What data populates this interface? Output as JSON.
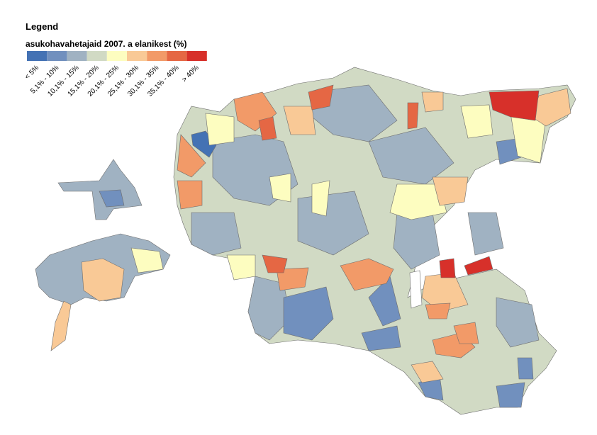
{
  "legend": {
    "title": "Legend",
    "subtitle": "asukohavahetajaid 2007. a elanikest (%)",
    "classes": [
      {
        "label": "< 5%",
        "color": "#4472b4"
      },
      {
        "label": "5,1% - 10%",
        "color": "#7190be"
      },
      {
        "label": "10,1% - 15%",
        "color": "#a0b2c2"
      },
      {
        "label": "15,1% - 20%",
        "color": "#d1dac4"
      },
      {
        "label": "20,1% - 25%",
        "color": "#fdfdc0"
      },
      {
        "label": "25,1% - 30%",
        "color": "#f9c996"
      },
      {
        "label": "30,1% - 35%",
        "color": "#f29a68"
      },
      {
        "label": "35,1% - 40%",
        "color": "#e56744"
      },
      {
        "label": "> 40%",
        "color": "#d7302a"
      }
    ]
  }
}
